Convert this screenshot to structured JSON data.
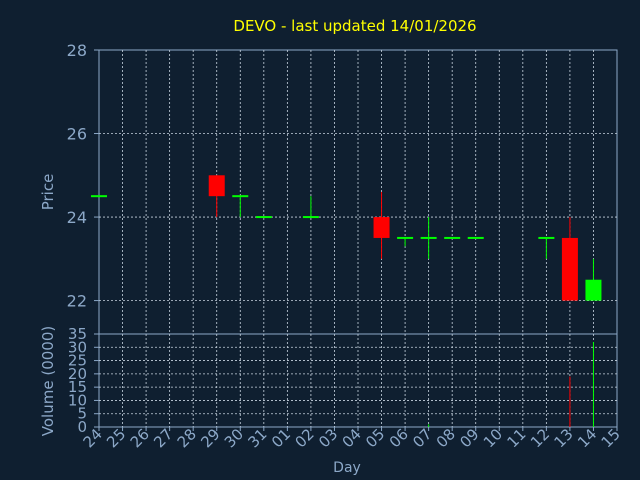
{
  "title": "DEVO - last updated 14/01/2026",
  "colors": {
    "background": "#0f1f30",
    "axis": "#8ca8c8",
    "grid": "#c8d4e0",
    "title": "#ffff00",
    "up": "#00ff00",
    "down": "#ff0000"
  },
  "chart_data": [
    {
      "type": "candlestick",
      "title": "DEVO - last updated 14/01/2026",
      "ylabel": "Price",
      "ylim": [
        21.2,
        28
      ],
      "yticks": [
        22,
        24,
        26,
        28
      ],
      "categories": [
        "24",
        "25",
        "26",
        "27",
        "28",
        "29",
        "30",
        "31",
        "01",
        "02",
        "03",
        "04",
        "05",
        "06",
        "07",
        "08",
        "09",
        "10",
        "11",
        "12",
        "13",
        "14",
        "15"
      ],
      "grid": true,
      "candles": [
        {
          "x": "24",
          "open": 24.5,
          "close": 24.5,
          "high": 24.5,
          "low": 24.5
        },
        {
          "x": "29",
          "open": 25.0,
          "close": 24.5,
          "high": 25.0,
          "low": 24.0
        },
        {
          "x": "30",
          "open": 24.5,
          "close": 24.5,
          "high": 24.5,
          "low": 24.0
        },
        {
          "x": "31",
          "open": 24.0,
          "close": 24.0,
          "high": 24.0,
          "low": 24.0
        },
        {
          "x": "02",
          "open": 24.0,
          "close": 24.0,
          "high": 24.5,
          "low": 24.0
        },
        {
          "x": "05",
          "open": 24.0,
          "close": 23.5,
          "high": 24.6,
          "low": 23.0
        },
        {
          "x": "06",
          "open": 23.5,
          "close": 23.5,
          "high": 23.5,
          "low": 23.3
        },
        {
          "x": "07",
          "open": 23.5,
          "close": 23.5,
          "high": 24.0,
          "low": 23.0
        },
        {
          "x": "08",
          "open": 23.5,
          "close": 23.5,
          "high": 23.5,
          "low": 23.5
        },
        {
          "x": "09",
          "open": 23.5,
          "close": 23.5,
          "high": 23.5,
          "low": 23.5
        },
        {
          "x": "12",
          "open": 23.5,
          "close": 23.5,
          "high": 23.5,
          "low": 23.0
        },
        {
          "x": "13",
          "open": 23.5,
          "close": 22.0,
          "high": 24.0,
          "low": 22.0
        },
        {
          "x": "14",
          "open": 22.0,
          "close": 22.5,
          "high": 23.0,
          "low": 22.0
        }
      ]
    },
    {
      "type": "bar",
      "ylabel": "Volume (0000)",
      "xlabel": "Day",
      "ylim": [
        0,
        35
      ],
      "yticks": [
        0,
        5,
        10,
        15,
        20,
        25,
        30,
        35
      ],
      "categories": [
        "24",
        "25",
        "26",
        "27",
        "28",
        "29",
        "30",
        "31",
        "01",
        "02",
        "03",
        "04",
        "05",
        "06",
        "07",
        "08",
        "09",
        "10",
        "11",
        "12",
        "13",
        "14",
        "15"
      ],
      "grid": true,
      "bars": [
        {
          "x": "07",
          "value": 1,
          "color": "up"
        },
        {
          "x": "13",
          "value": 19,
          "color": "down"
        },
        {
          "x": "14",
          "value": 32,
          "color": "up"
        }
      ]
    }
  ]
}
